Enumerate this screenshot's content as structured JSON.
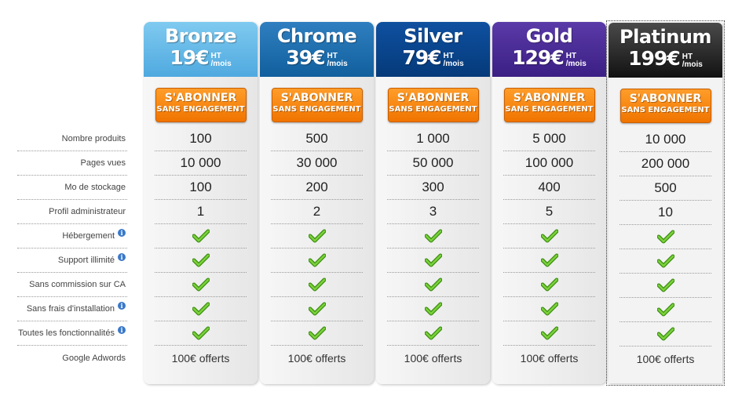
{
  "features": [
    {
      "label": "Nombre produits",
      "info": false
    },
    {
      "label": "Pages vues",
      "info": false
    },
    {
      "label": "Mo de stockage",
      "info": false
    },
    {
      "label": "Profil administrateur",
      "info": false
    },
    {
      "label": "Hébergement",
      "info": true
    },
    {
      "label": "Support illimité",
      "info": true
    },
    {
      "label": "Sans commission sur CA",
      "info": false
    },
    {
      "label": "Sans frais d'installation",
      "info": true
    },
    {
      "label": "Toutes les fonctionnalités",
      "info": true
    },
    {
      "label": "Google Adwords",
      "info": false
    }
  ],
  "info_glyph": "i",
  "subscribe": {
    "main": "S'ABONNER",
    "sub": "SANS ENGAGEMENT"
  },
  "price_suffix": {
    "ht": "HT",
    "period": "/mois"
  },
  "plans": [
    {
      "name": "Bronze",
      "price": "19€",
      "values": [
        "100",
        "10 000",
        "100",
        "1"
      ],
      "adwords": "100€ offerts"
    },
    {
      "name": "Chrome",
      "price": "39€",
      "values": [
        "500",
        "30 000",
        "200",
        "2"
      ],
      "adwords": "100€ offerts"
    },
    {
      "name": "Silver",
      "price": "79€",
      "values": [
        "1 000",
        "50 000",
        "300",
        "3"
      ],
      "adwords": "100€ offerts"
    },
    {
      "name": "Gold",
      "price": "129€",
      "values": [
        "5 000",
        "100 000",
        "400",
        "5"
      ],
      "adwords": "100€ offerts"
    },
    {
      "name": "Platinum",
      "price": "199€",
      "values": [
        "10 000",
        "200 000",
        "500",
        "10"
      ],
      "adwords": "100€ offerts"
    }
  ],
  "colors": {
    "button_orange": "#f07400",
    "check_green": "#4caf1a",
    "info_blue": "#3a78c9"
  },
  "icons": {
    "check": "checkmark-icon",
    "info": "info-icon"
  }
}
